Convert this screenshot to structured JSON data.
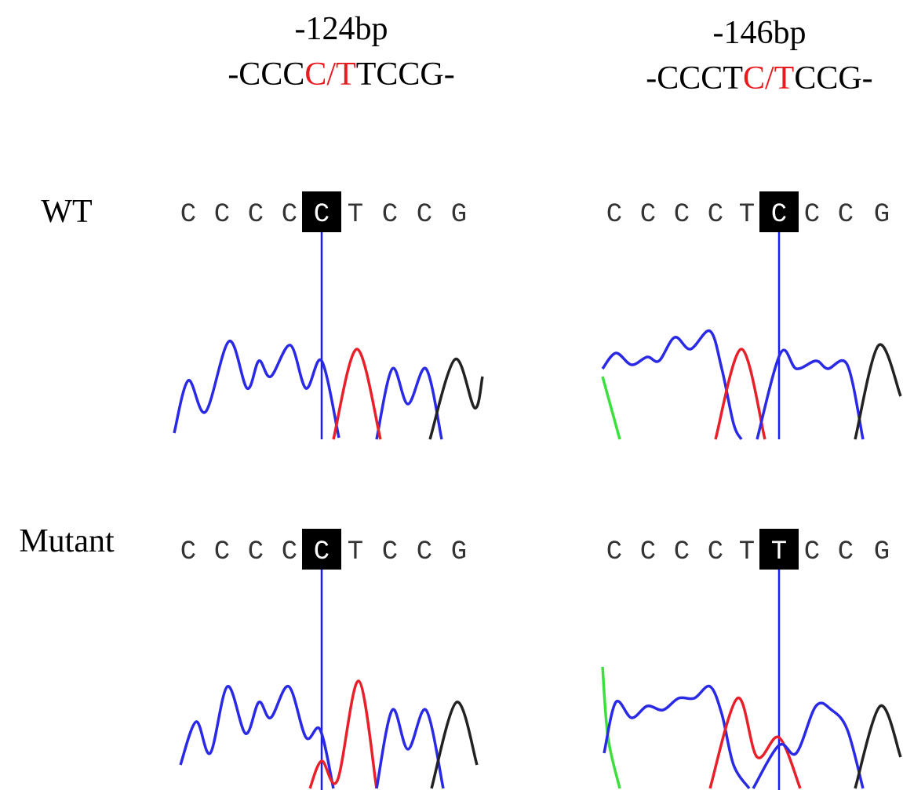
{
  "columns": [
    {
      "position": "-124bp",
      "sequence": {
        "before": "-CCC",
        "variant": "C/T",
        "after": "TCCG-"
      }
    },
    {
      "position": "-146bp",
      "sequence": {
        "before": "-CCCT",
        "variant": "C/T",
        "after": "CCG-"
      }
    }
  ],
  "rows": [
    {
      "label": "WT",
      "panels": [
        {
          "bases": [
            "C",
            "C",
            "C",
            "C",
            "C",
            "T",
            "C",
            "C",
            "G"
          ],
          "highlight": 4
        },
        {
          "bases": [
            "C",
            "C",
            "C",
            "C",
            "T",
            "C",
            "C",
            "C",
            "G"
          ],
          "highlight": 5
        }
      ]
    },
    {
      "label": "Mutant",
      "panels": [
        {
          "bases": [
            "C",
            "C",
            "C",
            "C",
            "C",
            "T",
            "C",
            "C",
            "G"
          ],
          "highlight": 4
        },
        {
          "bases": [
            "C",
            "C",
            "C",
            "C",
            "T",
            "T",
            "C",
            "C",
            "G"
          ],
          "highlight": 5
        }
      ]
    }
  ]
}
